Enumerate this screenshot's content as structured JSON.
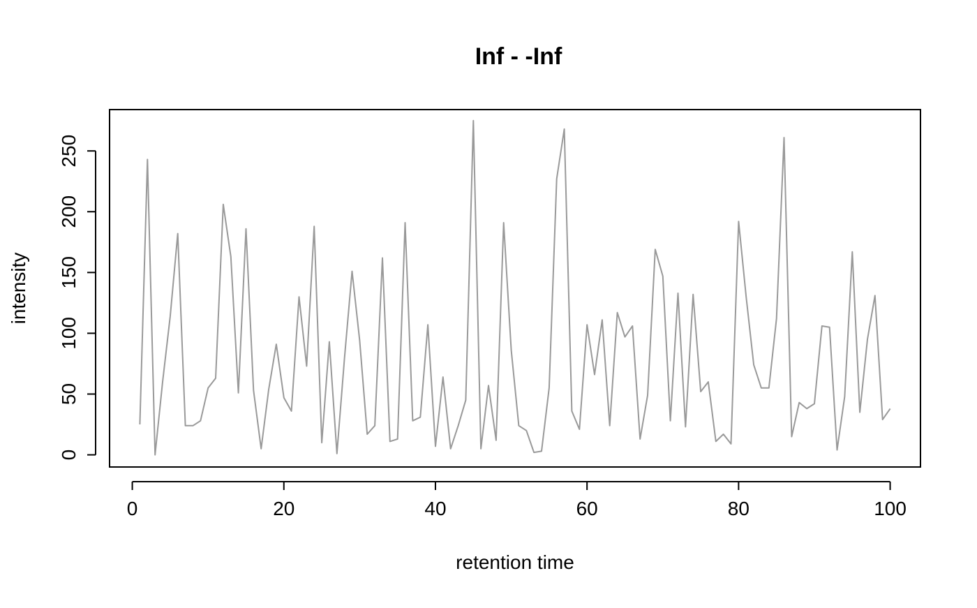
{
  "chart_data": {
    "type": "line",
    "title": "Inf - -Inf",
    "xlabel": "retention time",
    "ylabel": "intensity",
    "xlim": [
      -3,
      104
    ],
    "ylim": [
      -10,
      284
    ],
    "x_ticks": [
      0,
      20,
      40,
      60,
      80,
      100
    ],
    "y_ticks": [
      0,
      50,
      100,
      150,
      200,
      250
    ],
    "grid": false,
    "line_color": "#999999",
    "series": [
      {
        "x": [
          1,
          2,
          3,
          4,
          5,
          6,
          7,
          8,
          9,
          10,
          11,
          12,
          13,
          14,
          15,
          16,
          17,
          18,
          19,
          20,
          21,
          22,
          23,
          24,
          25,
          26,
          27,
          28,
          29,
          30,
          31,
          32,
          33,
          34,
          35,
          36,
          37,
          38,
          39,
          40,
          41,
          42,
          43,
          44,
          45,
          46,
          47,
          48,
          49,
          50,
          51,
          52,
          53,
          54,
          55,
          56,
          57,
          58,
          59,
          60,
          61,
          62,
          63,
          64,
          65,
          66,
          67,
          68,
          69,
          70,
          71,
          72,
          73,
          74,
          75,
          76,
          77,
          78,
          79,
          80,
          81,
          82,
          83,
          84,
          85,
          86,
          87,
          88,
          89,
          90,
          91,
          92,
          93,
          94,
          95,
          96,
          97,
          98,
          99,
          100
        ],
        "values": [
          25,
          243,
          0,
          60,
          114,
          182,
          24,
          24,
          28,
          55,
          63,
          206,
          163,
          51,
          186,
          53,
          5,
          54,
          91,
          47,
          36,
          130,
          73,
          188,
          10,
          93,
          1,
          80,
          151,
          94,
          17,
          24,
          162,
          11,
          13,
          191,
          28,
          31,
          107,
          7,
          64,
          5,
          24,
          45,
          275,
          5,
          57,
          12,
          191,
          86,
          24,
          20,
          2,
          3,
          55,
          227,
          268,
          36,
          21,
          107,
          66,
          111,
          24,
          117,
          97,
          106,
          13,
          49,
          169,
          147,
          28,
          133,
          23,
          132,
          52,
          60,
          11,
          17,
          9,
          192,
          130,
          74,
          55,
          55,
          112,
          261,
          15,
          43,
          38,
          42,
          106,
          105,
          4,
          48,
          167,
          35,
          95,
          131,
          29,
          38
        ]
      }
    ]
  }
}
